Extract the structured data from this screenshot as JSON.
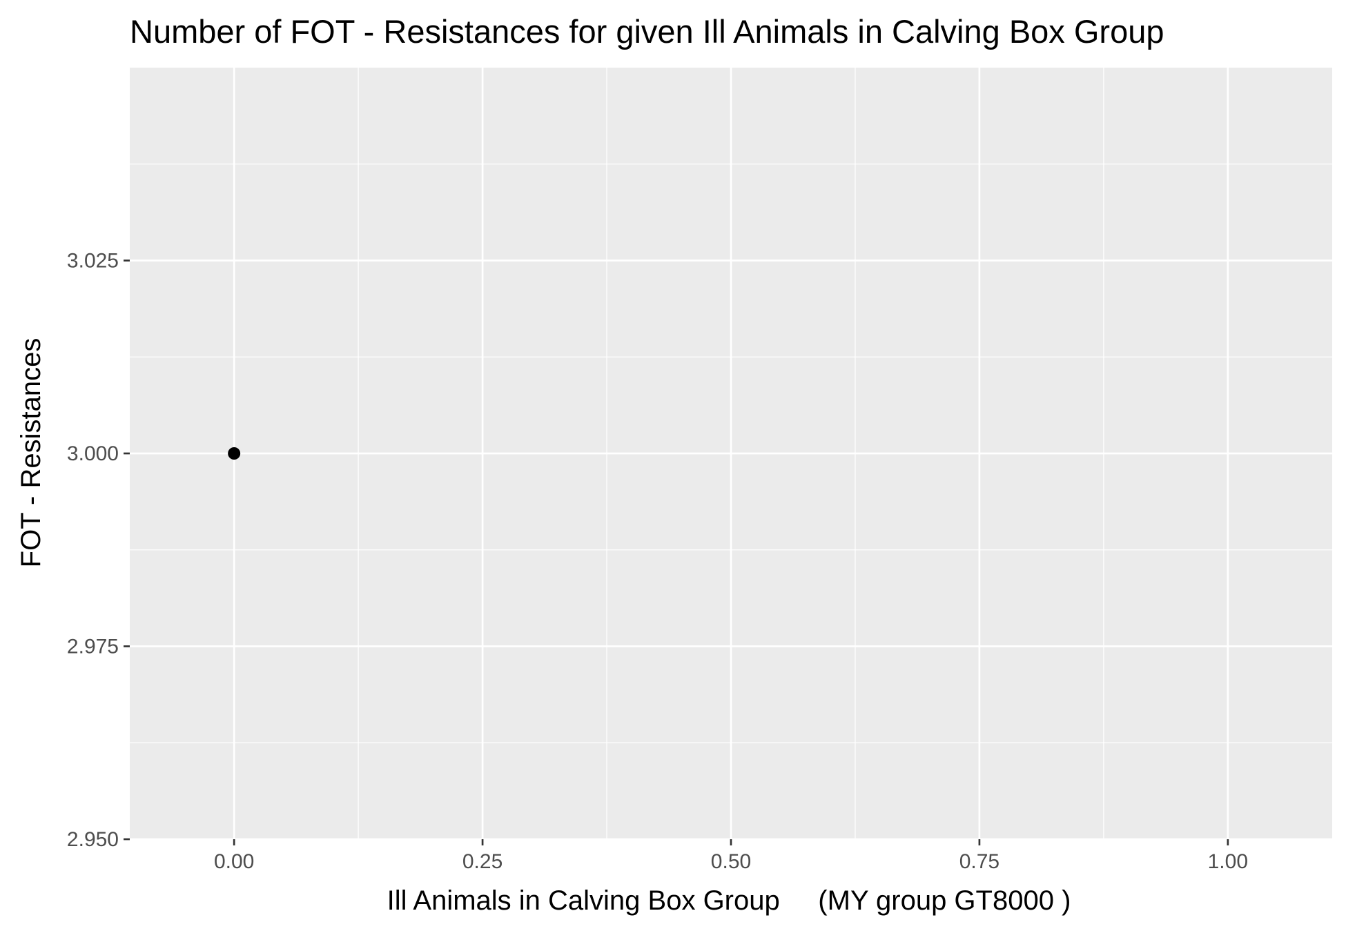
{
  "chart_data": {
    "type": "scatter",
    "title": "Number of FOT - Resistances for given Ill Animals in Calving Box Group",
    "xlabel": "Ill Animals in Calving Box Group     (MY group GT8000 )",
    "ylabel": "FOT - Resistances",
    "xlim": [
      -0.105,
      1.105
    ],
    "ylim": [
      2.95,
      3.05
    ],
    "x_ticks": [
      0.0,
      0.25,
      0.5,
      0.75,
      1.0
    ],
    "x_tick_labels": [
      "0.00",
      "0.25",
      "0.50",
      "0.75",
      "1.00"
    ],
    "y_ticks": [
      2.95,
      2.975,
      3.0,
      3.025
    ],
    "y_tick_labels": [
      "2.950",
      "2.975",
      "3.000",
      "3.025"
    ],
    "grid": true,
    "legend": "none",
    "colors": {
      "panel_background": "#ebebeb",
      "grid": "#ffffff",
      "point": "#000000",
      "tick_mark": "#333333"
    },
    "series": [
      {
        "x": [
          0.0
        ],
        "y": [
          3.0
        ]
      }
    ]
  }
}
